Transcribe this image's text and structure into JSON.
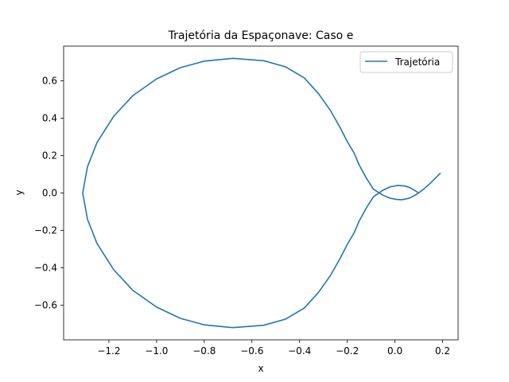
{
  "chart_data": {
    "type": "line",
    "title": "Trajetória da Espaçonave: Caso e",
    "xlabel": "x",
    "ylabel": "y",
    "xlim": [
      -1.39,
      0.265
    ],
    "ylim": [
      -0.785,
      0.785
    ],
    "xticks": [
      -1.2,
      -1.0,
      -0.8,
      -0.6,
      -0.4,
      -0.2,
      0.0,
      0.2
    ],
    "xtick_labels": [
      "−1.2",
      "−1.0",
      "−0.8",
      "−0.6",
      "−0.4",
      "−0.2",
      "0.0",
      "0.2"
    ],
    "yticks": [
      -0.6,
      -0.4,
      -0.2,
      0.0,
      0.2,
      0.4,
      0.6
    ],
    "ytick_labels": [
      "−0.6",
      "−0.4",
      "−0.2",
      "0.0",
      "0.2",
      "0.4",
      "0.6"
    ],
    "grid": false,
    "legend": "upper-right",
    "series": [
      {
        "name": "Trajetória",
        "color": "#1f77b4",
        "points": [
          [
            0.19,
            0.105
          ],
          [
            0.17,
            0.08
          ],
          [
            0.15,
            0.054
          ],
          [
            0.12,
            0.02
          ],
          [
            0.09,
            -0.008
          ],
          [
            0.06,
            -0.028
          ],
          [
            0.03,
            -0.036
          ],
          [
            0.01,
            -0.035
          ],
          [
            -0.02,
            -0.028
          ],
          [
            -0.05,
            -0.012
          ],
          [
            -0.09,
            0.02
          ],
          [
            -0.12,
            0.08
          ],
          [
            -0.15,
            0.15
          ],
          [
            -0.17,
            0.21
          ],
          [
            -0.2,
            0.275
          ],
          [
            -0.23,
            0.35
          ],
          [
            -0.27,
            0.44
          ],
          [
            -0.32,
            0.53
          ],
          [
            -0.38,
            0.615
          ],
          [
            -0.46,
            0.675
          ],
          [
            -0.55,
            0.707
          ],
          [
            -0.68,
            0.72
          ],
          [
            -0.8,
            0.705
          ],
          [
            -0.9,
            0.67
          ],
          [
            -1.0,
            0.61
          ],
          [
            -1.1,
            0.52
          ],
          [
            -1.18,
            0.41
          ],
          [
            -1.25,
            0.27
          ],
          [
            -1.29,
            0.14
          ],
          [
            -1.31,
            0.0
          ],
          [
            -1.29,
            -0.14
          ],
          [
            -1.25,
            -0.27
          ],
          [
            -1.18,
            -0.41
          ],
          [
            -1.1,
            -0.52
          ],
          [
            -1.0,
            -0.61
          ],
          [
            -0.9,
            -0.67
          ],
          [
            -0.8,
            -0.705
          ],
          [
            -0.68,
            -0.72
          ],
          [
            -0.55,
            -0.707
          ],
          [
            -0.46,
            -0.675
          ],
          [
            -0.38,
            -0.615
          ],
          [
            -0.32,
            -0.53
          ],
          [
            -0.27,
            -0.44
          ],
          [
            -0.23,
            -0.35
          ],
          [
            -0.2,
            -0.275
          ],
          [
            -0.17,
            -0.21
          ],
          [
            -0.15,
            -0.15
          ],
          [
            -0.12,
            -0.08
          ],
          [
            -0.09,
            -0.02
          ],
          [
            -0.05,
            0.015
          ],
          [
            -0.02,
            0.033
          ],
          [
            0.01,
            0.04
          ],
          [
            0.04,
            0.038
          ],
          [
            0.06,
            0.03
          ],
          [
            0.08,
            0.016
          ],
          [
            0.1,
            0.0
          ]
        ]
      }
    ]
  }
}
